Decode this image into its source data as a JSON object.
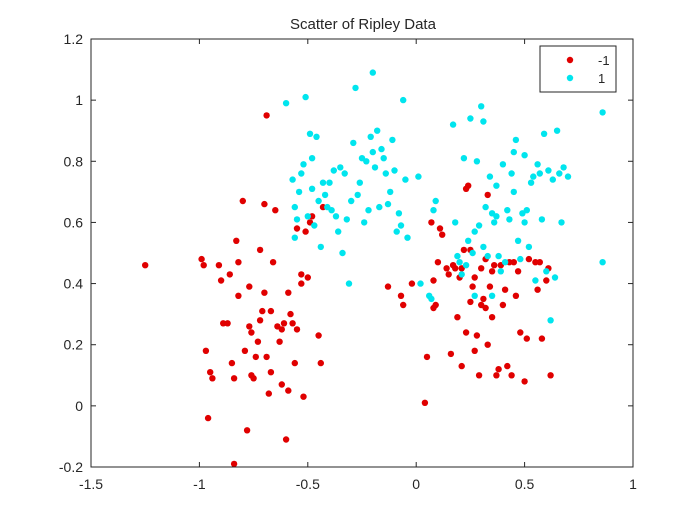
{
  "chart_data": {
    "type": "scatter",
    "title": "Scatter of Ripley Data",
    "xlabel": "",
    "ylabel": "",
    "xlim": [
      -1.5,
      1
    ],
    "ylim": [
      -0.2,
      1.2
    ],
    "xticks": [
      -1.5,
      -1,
      -0.5,
      0,
      0.5,
      1
    ],
    "xtick_labels": [
      "-1.5",
      "-1",
      "-0.5",
      "0",
      "0.5",
      "1"
    ],
    "yticks": [
      -0.2,
      0,
      0.2,
      0.4,
      0.6,
      0.8,
      1,
      1.2
    ],
    "ytick_labels": [
      "-0.2",
      "0",
      "0.2",
      "0.4",
      "0.6",
      "0.8",
      "1",
      "1.2"
    ],
    "grid": false,
    "legend_position": "top-right",
    "series": [
      {
        "name": "-1",
        "color": "#e00000",
        "points": [
          [
            -1.25,
            0.46
          ],
          [
            -0.99,
            0.48
          ],
          [
            -0.98,
            0.46
          ],
          [
            -0.97,
            0.18
          ],
          [
            -0.95,
            0.11
          ],
          [
            -0.94,
            0.09
          ],
          [
            -0.96,
            -0.04
          ],
          [
            -0.91,
            0.46
          ],
          [
            -0.9,
            0.41
          ],
          [
            -0.89,
            0.27
          ],
          [
            -0.87,
            0.27
          ],
          [
            -0.86,
            0.43
          ],
          [
            -0.85,
            0.14
          ],
          [
            -0.84,
            0.09
          ],
          [
            -0.83,
            0.54
          ],
          [
            -0.82,
            0.36
          ],
          [
            -0.82,
            0.47
          ],
          [
            -0.8,
            0.67
          ],
          [
            -0.79,
            0.18
          ],
          [
            -0.78,
            -0.08
          ],
          [
            -0.77,
            0.26
          ],
          [
            -0.77,
            0.39
          ],
          [
            -0.76,
            0.1
          ],
          [
            -0.76,
            0.24
          ],
          [
            -0.75,
            0.09
          ],
          [
            -0.74,
            0.16
          ],
          [
            -0.73,
            0.21
          ],
          [
            -0.72,
            0.28
          ],
          [
            -0.72,
            0.51
          ],
          [
            -0.71,
            0.31
          ],
          [
            -0.7,
            0.37
          ],
          [
            -0.7,
            0.66
          ],
          [
            -0.69,
            0.95
          ],
          [
            -0.69,
            0.16
          ],
          [
            -0.68,
            0.04
          ],
          [
            -0.67,
            0.11
          ],
          [
            -0.67,
            0.31
          ],
          [
            -0.66,
            0.47
          ],
          [
            -0.65,
            0.64
          ],
          [
            -0.64,
            0.26
          ],
          [
            -0.63,
            0.21
          ],
          [
            -0.62,
            0.07
          ],
          [
            -0.62,
            0.25
          ],
          [
            -0.61,
            0.27
          ],
          [
            -0.6,
            -0.11
          ],
          [
            -0.59,
            0.05
          ],
          [
            -0.59,
            0.37
          ],
          [
            -0.58,
            0.3
          ],
          [
            -0.57,
            0.27
          ],
          [
            -0.56,
            0.14
          ],
          [
            -0.55,
            0.25
          ],
          [
            -0.55,
            0.58
          ],
          [
            -0.53,
            0.4
          ],
          [
            -0.53,
            0.43
          ],
          [
            -0.52,
            0.03
          ],
          [
            -0.51,
            0.57
          ],
          [
            -0.5,
            0.42
          ],
          [
            -0.49,
            0.6
          ],
          [
            -0.48,
            0.62
          ],
          [
            -0.45,
            0.23
          ],
          [
            -0.44,
            0.14
          ],
          [
            -0.43,
            0.65
          ],
          [
            -0.84,
            -0.19
          ],
          [
            -0.13,
            0.39
          ],
          [
            -0.07,
            0.36
          ],
          [
            -0.06,
            0.33
          ],
          [
            -0.02,
            0.4
          ],
          [
            0.04,
            0.01
          ],
          [
            0.05,
            0.16
          ],
          [
            0.07,
            0.6
          ],
          [
            0.08,
            0.32
          ],
          [
            0.08,
            0.41
          ],
          [
            0.09,
            0.33
          ],
          [
            0.1,
            0.47
          ],
          [
            0.11,
            0.58
          ],
          [
            0.12,
            0.56
          ],
          [
            0.14,
            0.45
          ],
          [
            0.15,
            0.43
          ],
          [
            0.16,
            0.17
          ],
          [
            0.17,
            0.46
          ],
          [
            0.18,
            0.45
          ],
          [
            0.19,
            0.29
          ],
          [
            0.2,
            0.42
          ],
          [
            0.21,
            0.13
          ],
          [
            0.21,
            0.45
          ],
          [
            0.22,
            0.51
          ],
          [
            0.23,
            0.24
          ],
          [
            0.23,
            0.71
          ],
          [
            0.24,
            0.72
          ],
          [
            0.25,
            0.34
          ],
          [
            0.25,
            0.51
          ],
          [
            0.26,
            0.39
          ],
          [
            0.27,
            0.18
          ],
          [
            0.27,
            0.42
          ],
          [
            0.28,
            0.23
          ],
          [
            0.29,
            0.1
          ],
          [
            0.3,
            0.33
          ],
          [
            0.3,
            0.45
          ],
          [
            0.31,
            0.35
          ],
          [
            0.32,
            0.48
          ],
          [
            0.32,
            0.32
          ],
          [
            0.33,
            0.69
          ],
          [
            0.33,
            0.2
          ],
          [
            0.34,
            0.39
          ],
          [
            0.35,
            0.44
          ],
          [
            0.35,
            0.29
          ],
          [
            0.36,
            0.46
          ],
          [
            0.37,
            0.1
          ],
          [
            0.38,
            0.12
          ],
          [
            0.39,
            0.46
          ],
          [
            0.4,
            0.33
          ],
          [
            0.41,
            0.38
          ],
          [
            0.42,
            0.13
          ],
          [
            0.43,
            0.47
          ],
          [
            0.44,
            0.1
          ],
          [
            0.45,
            0.47
          ],
          [
            0.46,
            0.36
          ],
          [
            0.47,
            0.44
          ],
          [
            0.48,
            0.24
          ],
          [
            0.5,
            0.08
          ],
          [
            0.51,
            0.22
          ],
          [
            0.52,
            0.48
          ],
          [
            0.55,
            0.47
          ],
          [
            0.56,
            0.38
          ],
          [
            0.57,
            0.47
          ],
          [
            0.58,
            0.22
          ],
          [
            0.6,
            0.41
          ],
          [
            0.61,
            0.45
          ],
          [
            0.62,
            0.1
          ]
        ]
      },
      {
        "name": "1",
        "color": "#00e5ee",
        "points": [
          [
            -0.6,
            0.99
          ],
          [
            -0.57,
            0.74
          ],
          [
            -0.56,
            0.65
          ],
          [
            -0.56,
            0.55
          ],
          [
            -0.55,
            0.61
          ],
          [
            -0.54,
            0.7
          ],
          [
            -0.53,
            0.76
          ],
          [
            -0.52,
            0.79
          ],
          [
            -0.51,
            1.01
          ],
          [
            -0.5,
            0.62
          ],
          [
            -0.49,
            0.89
          ],
          [
            -0.48,
            0.71
          ],
          [
            -0.48,
            0.81
          ],
          [
            -0.47,
            0.59
          ],
          [
            -0.46,
            0.88
          ],
          [
            -0.45,
            0.67
          ],
          [
            -0.44,
            0.52
          ],
          [
            -0.43,
            0.73
          ],
          [
            -0.42,
            0.69
          ],
          [
            -0.41,
            0.65
          ],
          [
            -0.4,
            0.73
          ],
          [
            -0.39,
            0.64
          ],
          [
            -0.38,
            0.77
          ],
          [
            -0.37,
            0.62
          ],
          [
            -0.36,
            0.57
          ],
          [
            -0.35,
            0.78
          ],
          [
            -0.34,
            0.5
          ],
          [
            -0.33,
            0.76
          ],
          [
            -0.32,
            0.61
          ],
          [
            -0.31,
            0.4
          ],
          [
            -0.3,
            0.67
          ],
          [
            -0.29,
            0.86
          ],
          [
            -0.28,
            1.04
          ],
          [
            -0.27,
            0.69
          ],
          [
            -0.26,
            0.73
          ],
          [
            -0.25,
            0.81
          ],
          [
            -0.24,
            0.6
          ],
          [
            -0.23,
            0.8
          ],
          [
            -0.22,
            0.64
          ],
          [
            -0.21,
            0.88
          ],
          [
            -0.2,
            1.09
          ],
          [
            -0.2,
            0.83
          ],
          [
            -0.19,
            0.78
          ],
          [
            -0.18,
            0.9
          ],
          [
            -0.17,
            0.65
          ],
          [
            -0.16,
            0.84
          ],
          [
            -0.15,
            0.81
          ],
          [
            -0.14,
            0.76
          ],
          [
            -0.13,
            0.66
          ],
          [
            -0.12,
            0.7
          ],
          [
            -0.11,
            0.87
          ],
          [
            -0.1,
            0.77
          ],
          [
            -0.09,
            0.57
          ],
          [
            -0.08,
            0.63
          ],
          [
            -0.07,
            0.59
          ],
          [
            -0.06,
            1.0
          ],
          [
            -0.05,
            0.74
          ],
          [
            -0.04,
            0.55
          ],
          [
            0.01,
            0.75
          ],
          [
            0.02,
            0.4
          ],
          [
            0.06,
            0.36
          ],
          [
            0.07,
            0.35
          ],
          [
            0.08,
            0.64
          ],
          [
            0.09,
            0.67
          ],
          [
            0.17,
            0.92
          ],
          [
            0.18,
            0.6
          ],
          [
            0.19,
            0.49
          ],
          [
            0.2,
            0.47
          ],
          [
            0.21,
            0.43
          ],
          [
            0.22,
            0.81
          ],
          [
            0.23,
            0.46
          ],
          [
            0.24,
            0.54
          ],
          [
            0.25,
            0.94
          ],
          [
            0.26,
            0.5
          ],
          [
            0.27,
            0.57
          ],
          [
            0.27,
            0.36
          ],
          [
            0.28,
            0.8
          ],
          [
            0.29,
            0.59
          ],
          [
            0.3,
            0.98
          ],
          [
            0.31,
            0.93
          ],
          [
            0.31,
            0.52
          ],
          [
            0.32,
            0.65
          ],
          [
            0.33,
            0.49
          ],
          [
            0.34,
            0.75
          ],
          [
            0.35,
            0.63
          ],
          [
            0.35,
            0.36
          ],
          [
            0.36,
            0.6
          ],
          [
            0.37,
            0.62
          ],
          [
            0.37,
            0.72
          ],
          [
            0.38,
            0.49
          ],
          [
            0.39,
            0.44
          ],
          [
            0.4,
            0.79
          ],
          [
            0.41,
            0.47
          ],
          [
            0.42,
            0.64
          ],
          [
            0.43,
            0.61
          ],
          [
            0.44,
            0.76
          ],
          [
            0.45,
            0.83
          ],
          [
            0.45,
            0.7
          ],
          [
            0.46,
            0.87
          ],
          [
            0.47,
            0.54
          ],
          [
            0.48,
            0.48
          ],
          [
            0.49,
            0.63
          ],
          [
            0.5,
            0.82
          ],
          [
            0.5,
            0.6
          ],
          [
            0.51,
            0.64
          ],
          [
            0.52,
            0.52
          ],
          [
            0.53,
            0.73
          ],
          [
            0.54,
            0.75
          ],
          [
            0.55,
            0.41
          ],
          [
            0.56,
            0.79
          ],
          [
            0.57,
            0.76
          ],
          [
            0.58,
            0.61
          ],
          [
            0.59,
            0.89
          ],
          [
            0.6,
            0.44
          ],
          [
            0.61,
            0.77
          ],
          [
            0.62,
            0.28
          ],
          [
            0.63,
            0.74
          ],
          [
            0.64,
            0.42
          ],
          [
            0.65,
            0.9
          ],
          [
            0.66,
            0.76
          ],
          [
            0.67,
            0.6
          ],
          [
            0.68,
            0.78
          ],
          [
            0.7,
            0.75
          ],
          [
            0.86,
            0.96
          ],
          [
            0.86,
            0.47
          ]
        ]
      }
    ]
  }
}
